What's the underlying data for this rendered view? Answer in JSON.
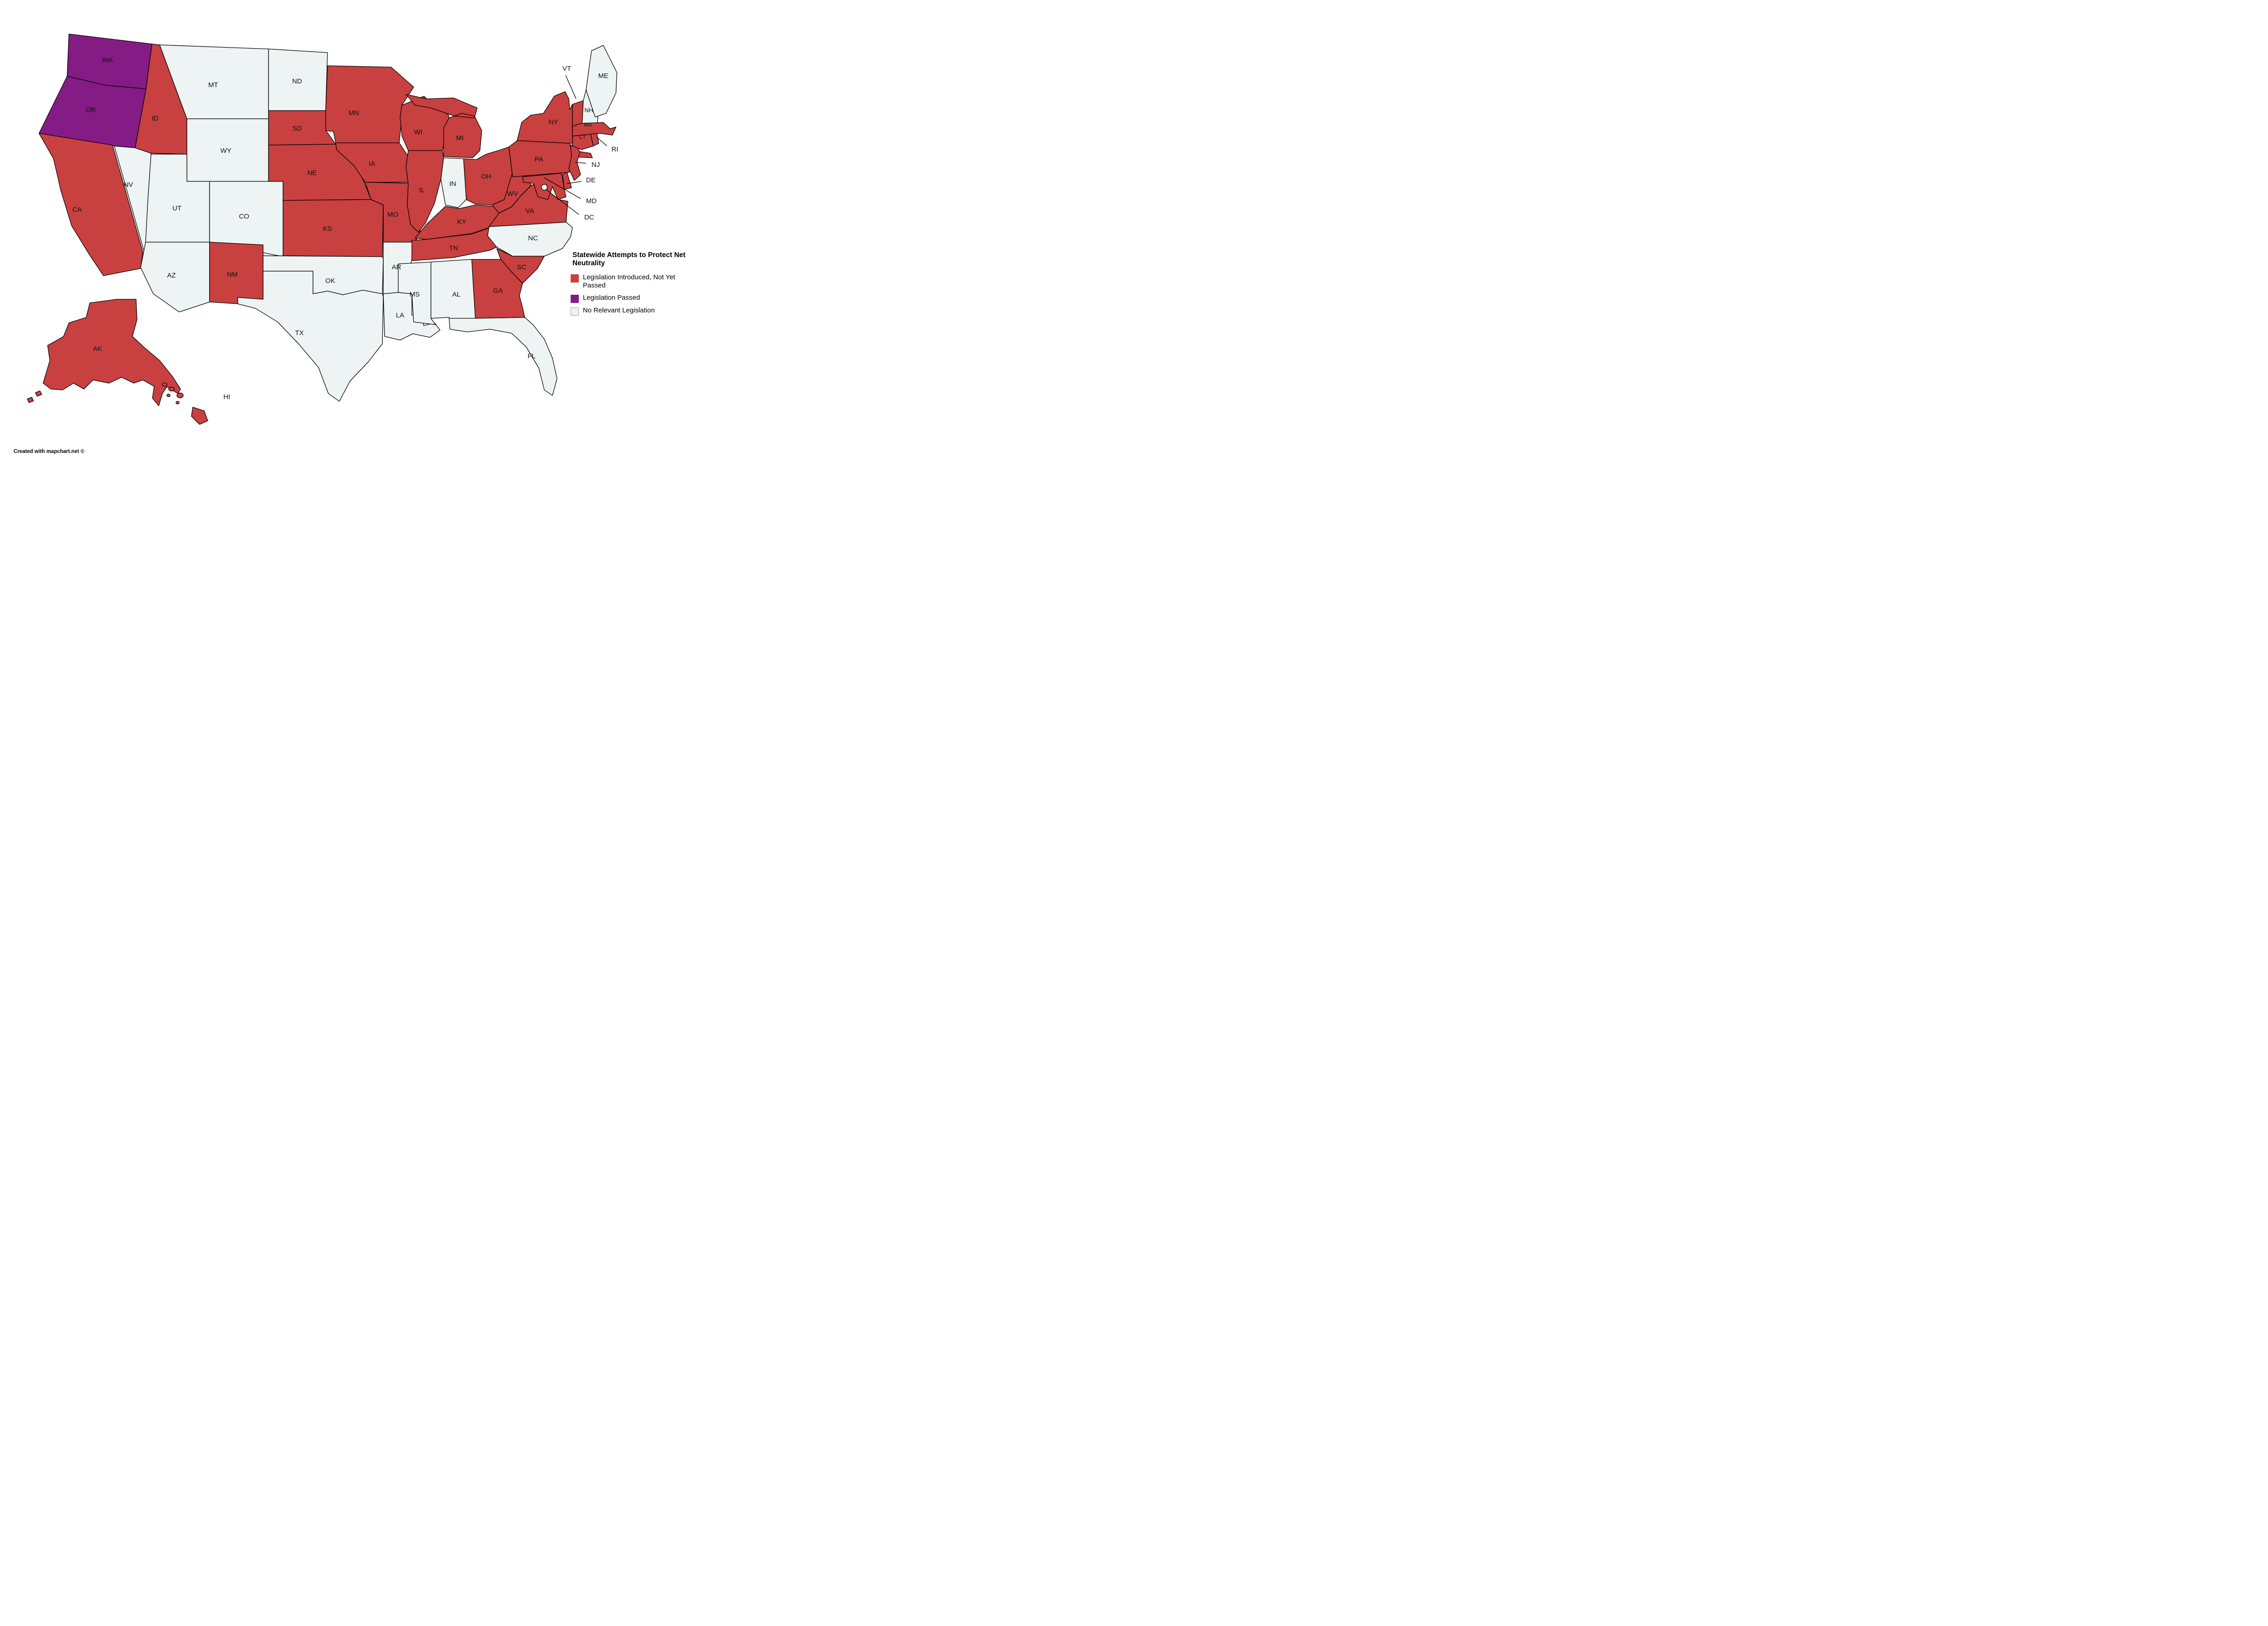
{
  "title": "Statewide Attempts to Protect Net Neutrality",
  "footer": "Created with mapchart.net ©",
  "legend": [
    {
      "id": "introduced",
      "label": "Legislation Introduced, Not Yet Passed",
      "color": "#C94040"
    },
    {
      "id": "passed",
      "label": "Legislation Passed",
      "color": "#851B85"
    },
    {
      "id": "none",
      "label": "No Relevant Legislation",
      "color": "#EDF4F3"
    }
  ],
  "map": {
    "border_color": "#000000",
    "background": "#ffffff"
  },
  "states": [
    {
      "code": "WA",
      "status": "passed"
    },
    {
      "code": "OR",
      "status": "passed"
    },
    {
      "code": "CA",
      "status": "introduced"
    },
    {
      "code": "NV",
      "status": "none"
    },
    {
      "code": "ID",
      "status": "introduced"
    },
    {
      "code": "MT",
      "status": "none"
    },
    {
      "code": "WY",
      "status": "none"
    },
    {
      "code": "UT",
      "status": "none"
    },
    {
      "code": "CO",
      "status": "none"
    },
    {
      "code": "AZ",
      "status": "none"
    },
    {
      "code": "NM",
      "status": "introduced"
    },
    {
      "code": "ND",
      "status": "none"
    },
    {
      "code": "SD",
      "status": "introduced"
    },
    {
      "code": "NE",
      "status": "introduced"
    },
    {
      "code": "KS",
      "status": "introduced"
    },
    {
      "code": "OK",
      "status": "none"
    },
    {
      "code": "TX",
      "status": "none"
    },
    {
      "code": "MN",
      "status": "introduced"
    },
    {
      "code": "IA",
      "status": "introduced"
    },
    {
      "code": "MO",
      "status": "introduced"
    },
    {
      "code": "AR",
      "status": "none"
    },
    {
      "code": "LA",
      "status": "none"
    },
    {
      "code": "WI",
      "status": "introduced"
    },
    {
      "code": "IL",
      "status": "introduced"
    },
    {
      "code": "MI",
      "status": "introduced"
    },
    {
      "code": "IN",
      "status": "none"
    },
    {
      "code": "OH",
      "status": "introduced"
    },
    {
      "code": "KY",
      "status": "introduced"
    },
    {
      "code": "TN",
      "status": "introduced"
    },
    {
      "code": "WV",
      "status": "introduced"
    },
    {
      "code": "VA",
      "status": "introduced"
    },
    {
      "code": "NC",
      "status": "none"
    },
    {
      "code": "SC",
      "status": "introduced"
    },
    {
      "code": "GA",
      "status": "introduced"
    },
    {
      "code": "AL",
      "status": "none"
    },
    {
      "code": "MS",
      "status": "none"
    },
    {
      "code": "FL",
      "status": "none"
    },
    {
      "code": "PA",
      "status": "introduced"
    },
    {
      "code": "NY",
      "status": "introduced"
    },
    {
      "code": "NJ",
      "status": "introduced"
    },
    {
      "code": "DE",
      "status": "introduced"
    },
    {
      "code": "MD",
      "status": "introduced"
    },
    {
      "code": "DC",
      "status": "none"
    },
    {
      "code": "VT",
      "status": "introduced"
    },
    {
      "code": "NH",
      "status": "none"
    },
    {
      "code": "MA",
      "status": "introduced"
    },
    {
      "code": "CT",
      "status": "introduced"
    },
    {
      "code": "RI",
      "status": "introduced"
    },
    {
      "code": "ME",
      "status": "none"
    },
    {
      "code": "AK",
      "status": "introduced"
    },
    {
      "code": "HI",
      "status": "introduced"
    }
  ]
}
